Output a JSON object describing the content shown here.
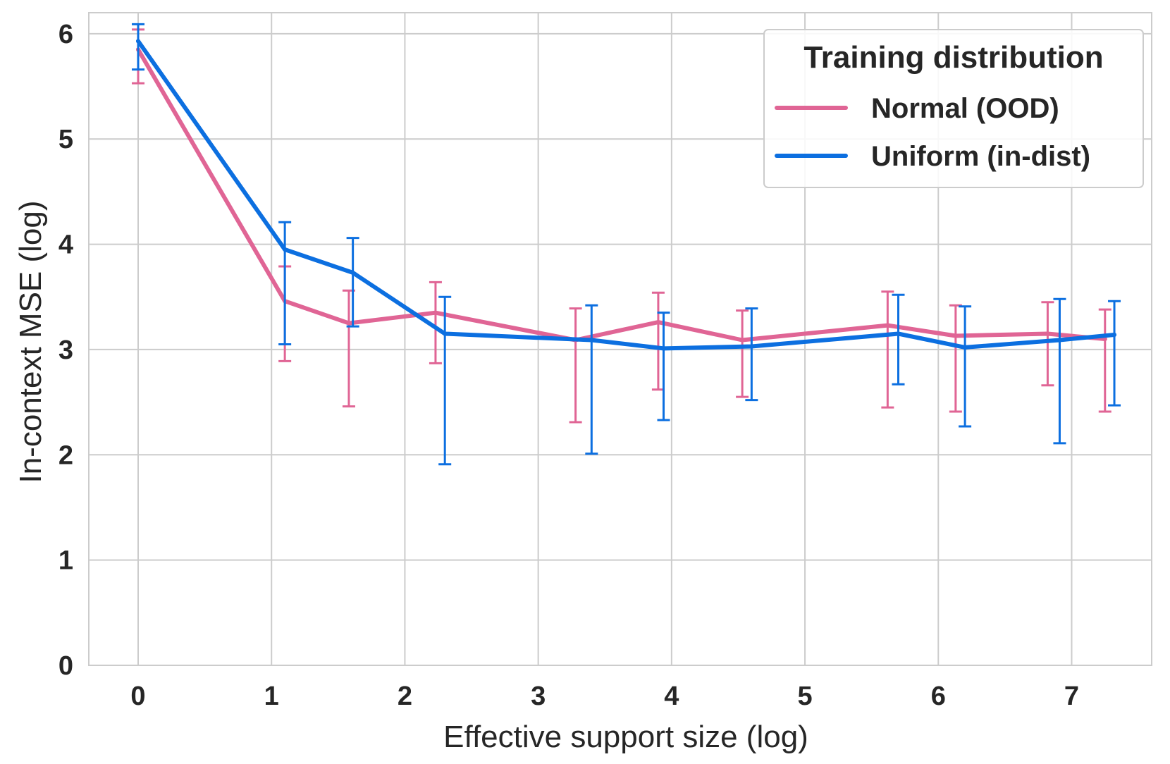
{
  "chart_data": {
    "type": "line",
    "title": "",
    "xlabel": "Effective support size (log)",
    "ylabel": "In-context MSE (log)",
    "xlim": [
      -0.37,
      7.6
    ],
    "ylim": [
      0,
      6.2
    ],
    "xticks": [
      0,
      1,
      2,
      3,
      4,
      5,
      6,
      7
    ],
    "yticks": [
      0,
      1,
      2,
      3,
      4,
      5,
      6
    ],
    "grid": true,
    "legend": {
      "title": "Training distribution",
      "placement": "top-right"
    },
    "series": [
      {
        "name": "Normal (OOD)",
        "color": "#E06595",
        "x": [
          0,
          1.1,
          1.58,
          2.23,
          3.28,
          3.9,
          4.53,
          5.62,
          6.13,
          6.82,
          7.25
        ],
        "y": [
          5.85,
          3.46,
          3.25,
          3.35,
          3.09,
          3.26,
          3.09,
          3.23,
          3.13,
          3.15,
          3.1
        ],
        "err_low": [
          5.53,
          2.89,
          2.46,
          2.87,
          2.31,
          2.62,
          2.55,
          2.45,
          2.41,
          2.66,
          2.41
        ],
        "err_high": [
          6.04,
          3.79,
          3.56,
          3.64,
          3.39,
          3.54,
          3.37,
          3.55,
          3.42,
          3.45,
          3.38
        ]
      },
      {
        "name": "Uniform (in-dist)",
        "color": "#0C6FE0",
        "x": [
          0,
          1.1,
          1.61,
          2.3,
          3.4,
          3.94,
          4.6,
          5.7,
          6.2,
          6.91,
          7.32
        ],
        "y": [
          5.93,
          3.95,
          3.73,
          3.15,
          3.09,
          3.01,
          3.03,
          3.15,
          3.02,
          3.09,
          3.14
        ],
        "err_low": [
          5.66,
          3.05,
          3.22,
          1.91,
          2.01,
          2.33,
          2.52,
          2.67,
          2.27,
          2.11,
          2.47
        ],
        "err_high": [
          6.09,
          4.21,
          4.06,
          3.5,
          3.42,
          3.35,
          3.39,
          3.52,
          3.41,
          3.48,
          3.46
        ]
      }
    ]
  }
}
